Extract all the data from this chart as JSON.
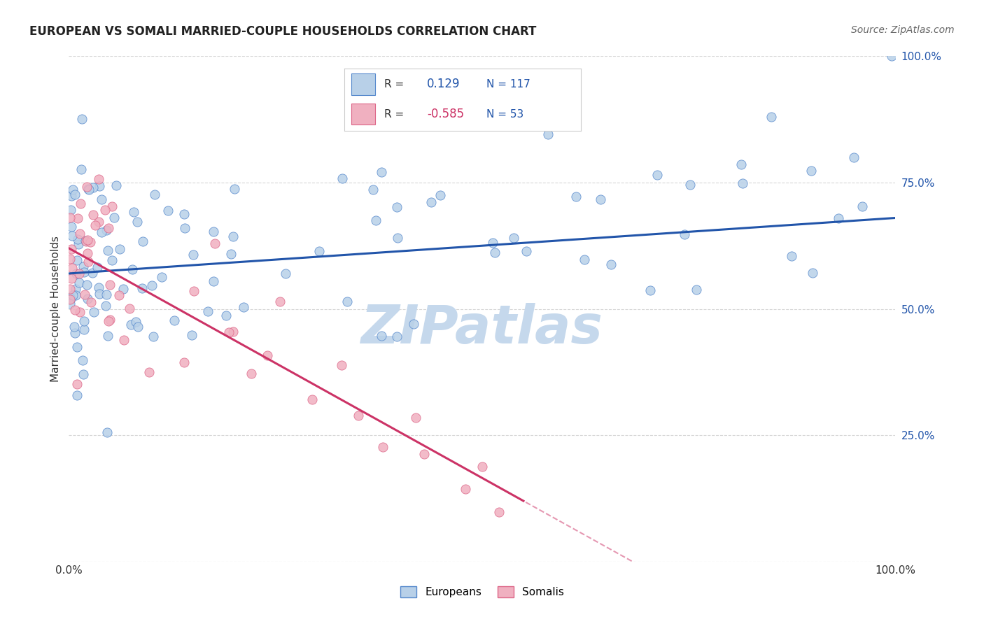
{
  "title": "EUROPEAN VS SOMALI MARRIED-COUPLE HOUSEHOLDS CORRELATION CHART",
  "source": "Source: ZipAtlas.com",
  "ylabel": "Married-couple Households",
  "watermark": "ZIPatlas",
  "europeans": {
    "R": 0.129,
    "N": 117,
    "color": "#b8d0e8",
    "edge_color": "#5588cc",
    "line_color": "#2255aa",
    "label": "Europeans",
    "trend_x0": 0,
    "trend_y0": 57,
    "trend_x1": 100,
    "trend_y1": 68
  },
  "somalis": {
    "R": -0.585,
    "N": 53,
    "color": "#f0b0c0",
    "edge_color": "#dd6688",
    "line_color": "#cc3366",
    "label": "Somalis",
    "trend_x0": 0,
    "trend_y0": 62,
    "trend_x1": 55,
    "trend_y1": 12,
    "dash_x0": 52,
    "dash_x1": 75
  },
  "xlim": [
    0,
    100
  ],
  "ylim": [
    0,
    100
  ],
  "grid_color": "#cccccc",
  "background_color": "#ffffff",
  "title_fontsize": 12,
  "source_fontsize": 10,
  "watermark_color": "#c5d8ec",
  "watermark_fontsize": 55,
  "legend_eu_R": "0.129",
  "legend_eu_N": "117",
  "legend_so_R": "-0.585",
  "legend_so_N": "53"
}
